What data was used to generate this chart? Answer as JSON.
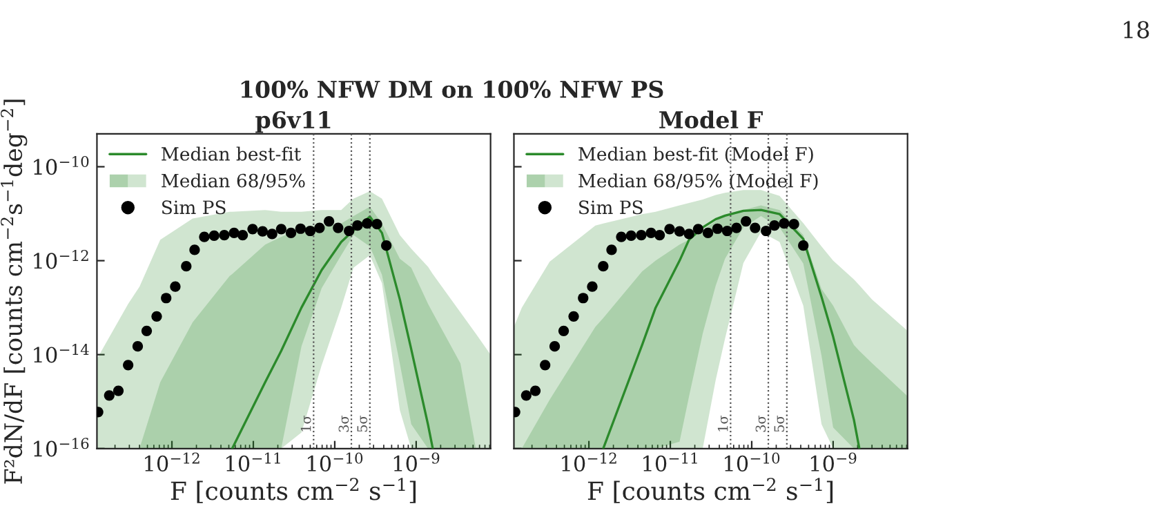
{
  "chart_data": [
    {
      "type": "line",
      "title": "100% NFW DM on 100% NFW PS",
      "subtitle": "p6v11",
      "xlabel": "F [counts cm$^{−2}$ s$^{−1}$]",
      "ylabel": "F²dN/dF [counts cm$^{−2}$s$^{−1}$deg$^{−2}$]",
      "annotations": [
        "18"
      ],
      "log": "xy",
      "xlim": [
        1.2e-13,
        8.2e-09
      ],
      "ylim": [
        1e-16,
        5e-10
      ],
      "xticks": [
        {
          "value": 1e-12,
          "label": "10$^{−12}$"
        },
        {
          "value": 1e-11,
          "label": "10$^{−11}$"
        },
        {
          "value": 1e-10,
          "label": "10$^{−10}$"
        },
        {
          "value": 1e-09,
          "label": "10$^{−9}$"
        }
      ],
      "yticks": [
        {
          "value": 1e-16,
          "label": "10$^{−16}$"
        },
        {
          "value": 1e-14,
          "label": "10$^{−14}$"
        },
        {
          "value": 1e-12,
          "label": "10$^{−12}$"
        },
        {
          "value": 1e-10,
          "label": "10$^{−10}$"
        }
      ],
      "grid": false,
      "legend": "top left",
      "ref_lines": [
        {
          "axis": "x",
          "value": 5.5e-11,
          "label": "1σ",
          "color": "#555555",
          "line_style": "dotted"
        },
        {
          "axis": "x",
          "value": 1.6e-10,
          "label": "3σ",
          "color": "#555555",
          "line_style": "dotted"
        },
        {
          "axis": "x",
          "value": 2.7e-10,
          "label": "5σ",
          "color": "#555555",
          "line_style": "dotted"
        }
      ],
      "series": [
        {
          "name": "Median best-fit",
          "color": "#2b8a2b",
          "x": [
            4e-13,
            7.2e-13,
            1.8e-12,
            5.1e-12,
            5.5e-12,
            1.4e-11,
            2.2e-11,
            3.9e-11,
            6.9e-11,
            1.2e-10,
            1.7e-10,
            2.7e-10,
            3.8e-10,
            6.3e-10,
            8.7e-10,
            1.4e-09,
            1.6e-09,
            3.5e-09,
            5.4e-09
          ],
          "values": [
            null,
            null,
            null,
            null,
            1e-16,
            2.6e-15,
            1.2e-14,
            1e-13,
            6.3e-13,
            2.5e-12,
            4.4e-12,
            8.7e-12,
            3.9e-12,
            1.5e-13,
            1.3e-14,
            3.2e-16,
            1e-16,
            null,
            null
          ],
          "lower": [
            1e-16,
            1e-16,
            1e-16,
            1e-16,
            1e-16,
            1e-16,
            1e-16,
            1.5e-14,
            2.6e-13,
            1.3e-12,
            3.5e-12,
            2e-12,
            5e-13,
            6.5e-15,
            3.3e-16,
            1e-16,
            1e-16,
            1e-16,
            1e-16
          ],
          "upper": [
            1e-16,
            2.6e-15,
            4.9e-14,
            4.7e-13,
            5.2e-13,
            2.2e-12,
            3.2e-12,
            5e-12,
            5.5e-12,
            6.2e-12,
            8.9e-12,
            1.4e-11,
            6.2e-12,
            1.1e-12,
            7.1e-13,
            1.2e-13,
            7.8e-14,
            6.5e-15,
            1e-16
          ]
        },
        {
          "name": "Median 68/95%",
          "color": "#2b8a2b",
          "x": [
            1.2e-13,
            2.9e-13,
            4e-13,
            7.2e-13,
            1.8e-12,
            5.1e-12,
            5.5e-12,
            1.4e-11,
            2.2e-11,
            3.9e-11,
            6.9e-11,
            1.2e-10,
            1.7e-10,
            2.7e-10,
            3.8e-10,
            6.3e-10,
            8.7e-10,
            1.4e-09,
            1.6e-09,
            3.5e-09,
            5.4e-09,
            8.2e-09
          ],
          "values": [
            null,
            null,
            null,
            null,
            null,
            null,
            null,
            null,
            null,
            null,
            null,
            null,
            null,
            null,
            null,
            null,
            null,
            null,
            null,
            null,
            null,
            null
          ],
          "lower": [
            1e-16,
            1e-16,
            1e-16,
            1e-16,
            1e-16,
            1e-16,
            1e-16,
            1e-16,
            1e-16,
            2.2e-16,
            5.9e-15,
            1e-13,
            7.1e-13,
            1.3e-12,
            3.3e-13,
            6.6e-16,
            1e-16,
            1e-16,
            1e-16,
            1e-16,
            1e-16,
            1e-16
          ],
          "upper": [
            8.1e-15,
            1.2e-13,
            2.8e-13,
            2.8e-12,
            7.9e-12,
            1.1e-11,
            1.1e-11,
            1.2e-11,
            1.1e-11,
            1.1e-11,
            1.2e-11,
            1.2e-11,
            2.1e-11,
            3e-11,
            2.1e-11,
            3.5e-12,
            1.8e-12,
            7.4e-13,
            5.2e-13,
            7.9e-14,
            2.8e-14,
            1e-14
          ]
        },
        {
          "type": "scatter",
          "name": "Sim PS",
          "color": "#000000",
          "marker": "circle",
          "x": [
            1.24e-13,
            1.7e-13,
            2.2e-13,
            2.9e-13,
            3.8e-13,
            4.9e-13,
            6.5e-13,
            8.5e-13,
            1.1e-12,
            1.5e-12,
            1.9e-12,
            2.5e-12,
            3.3e-12,
            4.4e-12,
            5.8e-12,
            7.4e-12,
            9.8e-12,
            1.3e-11,
            1.7e-11,
            2.2e-11,
            2.9e-11,
            3.8e-11,
            5e-11,
            6.5e-11,
            8.5e-11,
            1.1e-10,
            1.5e-10,
            1.9e-10,
            2.5e-10,
            3.3e-10,
            4.3e-10
          ],
          "values": [
            6e-16,
            1.35e-15,
            1.7e-15,
            6e-15,
            1.5e-14,
            3.2e-14,
            6.5e-14,
            1.6e-13,
            2.8e-13,
            7.6e-13,
            1.7e-12,
            3.2e-12,
            3.4e-12,
            3.5e-12,
            3.9e-12,
            3.5e-12,
            4.7e-12,
            4.2e-12,
            3.7e-12,
            4.7e-12,
            3.9e-12,
            4.8e-12,
            4.3e-12,
            5e-12,
            6.9e-12,
            5e-12,
            4.3e-12,
            5.6e-12,
            6.2e-12,
            6e-12,
            2.1e-12
          ]
        }
      ]
    },
    {
      "type": "line",
      "title": "Model F",
      "xlabel": "F [counts cm$^{−2}$ s$^{−1}$]",
      "log": "xy",
      "xlim": [
        1.2e-13,
        8.2e-09
      ],
      "ylim": [
        1e-16,
        5e-10
      ],
      "tick_labels": "x",
      "xticks": [
        {
          "value": 1e-12,
          "label": "10$^{−12}$"
        },
        {
          "value": 1e-11,
          "label": "10$^{−11}$"
        },
        {
          "value": 1e-10,
          "label": "10$^{−10}$"
        },
        {
          "value": 1e-09,
          "label": "10$^{−9}$"
        }
      ],
      "yticks": [
        {
          "value": 1e-16,
          "label": null
        },
        {
          "value": 1e-14,
          "label": null
        },
        {
          "value": 1e-12,
          "label": null
        },
        {
          "value": 1e-10,
          "label": null
        }
      ],
      "grid": false,
      "legend": "top left",
      "ref_lines": [
        {
          "axis": "x",
          "value": 5.5e-11,
          "label": "1σ",
          "color": "#555555",
          "line_style": "dotted"
        },
        {
          "axis": "x",
          "value": 1.6e-10,
          "label": "3σ",
          "color": "#555555",
          "line_style": "dotted"
        },
        {
          "axis": "x",
          "value": 2.7e-10,
          "label": "5σ",
          "color": "#555555",
          "line_style": "dotted"
        }
      ],
      "series": [
        {
          "name": "Median best-fit (Model F)",
          "color": "#2b8a2b",
          "x": [
            1.5e-13,
            3.3e-13,
            1.2e-12,
            1.5e-12,
            4.5e-12,
            6.6e-12,
            1.3e-11,
            1.7e-11,
            2.5e-11,
            3.6e-11,
            4.7e-11,
            7.9e-11,
            1.3e-10,
            2.2e-10,
            4.3e-10,
            7.2e-10,
            1e-09,
            1.8e-09,
            2.1e-09,
            3e-09,
            8.2e-09
          ],
          "values": [
            null,
            null,
            null,
            1e-16,
            1.6e-14,
            1e-13,
            1e-12,
            2.8e-12,
            5.1e-12,
            7.6e-12,
            9.1e-12,
            1.15e-11,
            1.2e-11,
            9.8e-12,
            2.9e-12,
            1.7e-13,
            2.4e-14,
            4.1e-16,
            1e-16,
            null,
            null
          ],
          "lower": [
            1e-16,
            1e-16,
            1e-16,
            1e-16,
            1e-16,
            1e-16,
            1.4e-16,
            1.3e-15,
            2.8e-14,
            2.9e-13,
            1.1e-12,
            5.1e-12,
            8.9e-12,
            5.1e-12,
            8.7e-13,
            9.5e-15,
            2.8e-16,
            1e-16,
            1e-16,
            1e-16,
            1e-16
          ],
          "upper": [
            1e-16,
            1.1e-15,
            3.9e-14,
            6e-14,
            5.9e-13,
            1e-12,
            2.2e-12,
            2.8e-12,
            4.5e-12,
            6.9e-12,
            9.5e-12,
            1.2e-11,
            1.5e-11,
            1.2e-11,
            3.5e-12,
            2.5e-13,
            1.1e-13,
            1.6e-14,
            1.2e-14,
            6.6e-15,
            1.3e-15
          ]
        },
        {
          "name": "Median 68/95% (Model F)",
          "color": "#2b8a2b",
          "x": [
            1.2e-13,
            1.5e-13,
            3.3e-13,
            1.2e-12,
            1.5e-12,
            4.5e-12,
            6.6e-12,
            1.3e-11,
            1.7e-11,
            2.5e-11,
            3.6e-11,
            4.7e-11,
            7.9e-11,
            1.3e-10,
            2.2e-10,
            4.3e-10,
            7.2e-10,
            1e-09,
            1.8e-09,
            2.1e-09,
            3e-09,
            8.2e-09
          ],
          "values": [
            null,
            null,
            null,
            null,
            null,
            null,
            null,
            null,
            null,
            null,
            null,
            null,
            null,
            null,
            null,
            null,
            null,
            null,
            null,
            null,
            null,
            null
          ],
          "lower": [
            1e-16,
            1e-16,
            1e-16,
            1e-16,
            1e-16,
            1e-16,
            1e-16,
            1e-16,
            1e-16,
            1e-16,
            2.8e-15,
            2.2e-14,
            8.9e-13,
            4.1e-12,
            2.5e-12,
            1.1e-13,
            3.3e-16,
            1e-16,
            1e-16,
            1e-16,
            1e-16,
            1e-16
          ],
          "upper": [
            3.9e-14,
            1e-13,
            9.5e-13,
            5.6e-12,
            6.2e-12,
            9.8e-12,
            1.1e-11,
            1.5e-11,
            1.7e-11,
            2e-11,
            2.5e-11,
            2.8e-11,
            3.2e-11,
            3.2e-11,
            2.4e-11,
            6.3e-12,
            2e-12,
            1e-12,
            4e-13,
            3e-13,
            1.5e-13,
            3.2e-14
          ]
        },
        {
          "type": "scatter",
          "name": "Sim PS",
          "color": "#000000",
          "marker": "circle",
          "x": [
            1.24e-13,
            1.7e-13,
            2.2e-13,
            2.9e-13,
            3.8e-13,
            4.9e-13,
            6.5e-13,
            8.5e-13,
            1.1e-12,
            1.5e-12,
            1.9e-12,
            2.5e-12,
            3.3e-12,
            4.4e-12,
            5.8e-12,
            7.4e-12,
            9.8e-12,
            1.3e-11,
            1.7e-11,
            2.2e-11,
            2.9e-11,
            3.8e-11,
            5e-11,
            6.5e-11,
            8.5e-11,
            1.1e-10,
            1.5e-10,
            1.9e-10,
            2.5e-10,
            3.3e-10,
            4.3e-10
          ],
          "values": [
            6e-16,
            1.35e-15,
            1.7e-15,
            6e-15,
            1.5e-14,
            3.2e-14,
            6.5e-14,
            1.6e-13,
            2.8e-13,
            7.6e-13,
            1.7e-12,
            3.2e-12,
            3.4e-12,
            3.5e-12,
            3.9e-12,
            3.5e-12,
            4.7e-12,
            4.2e-12,
            3.7e-12,
            4.7e-12,
            3.9e-12,
            4.8e-12,
            4.3e-12,
            5e-12,
            6.9e-12,
            5e-12,
            4.3e-12,
            5.6e-12,
            6.2e-12,
            6e-12,
            2.1e-12
          ]
        }
      ]
    }
  ]
}
